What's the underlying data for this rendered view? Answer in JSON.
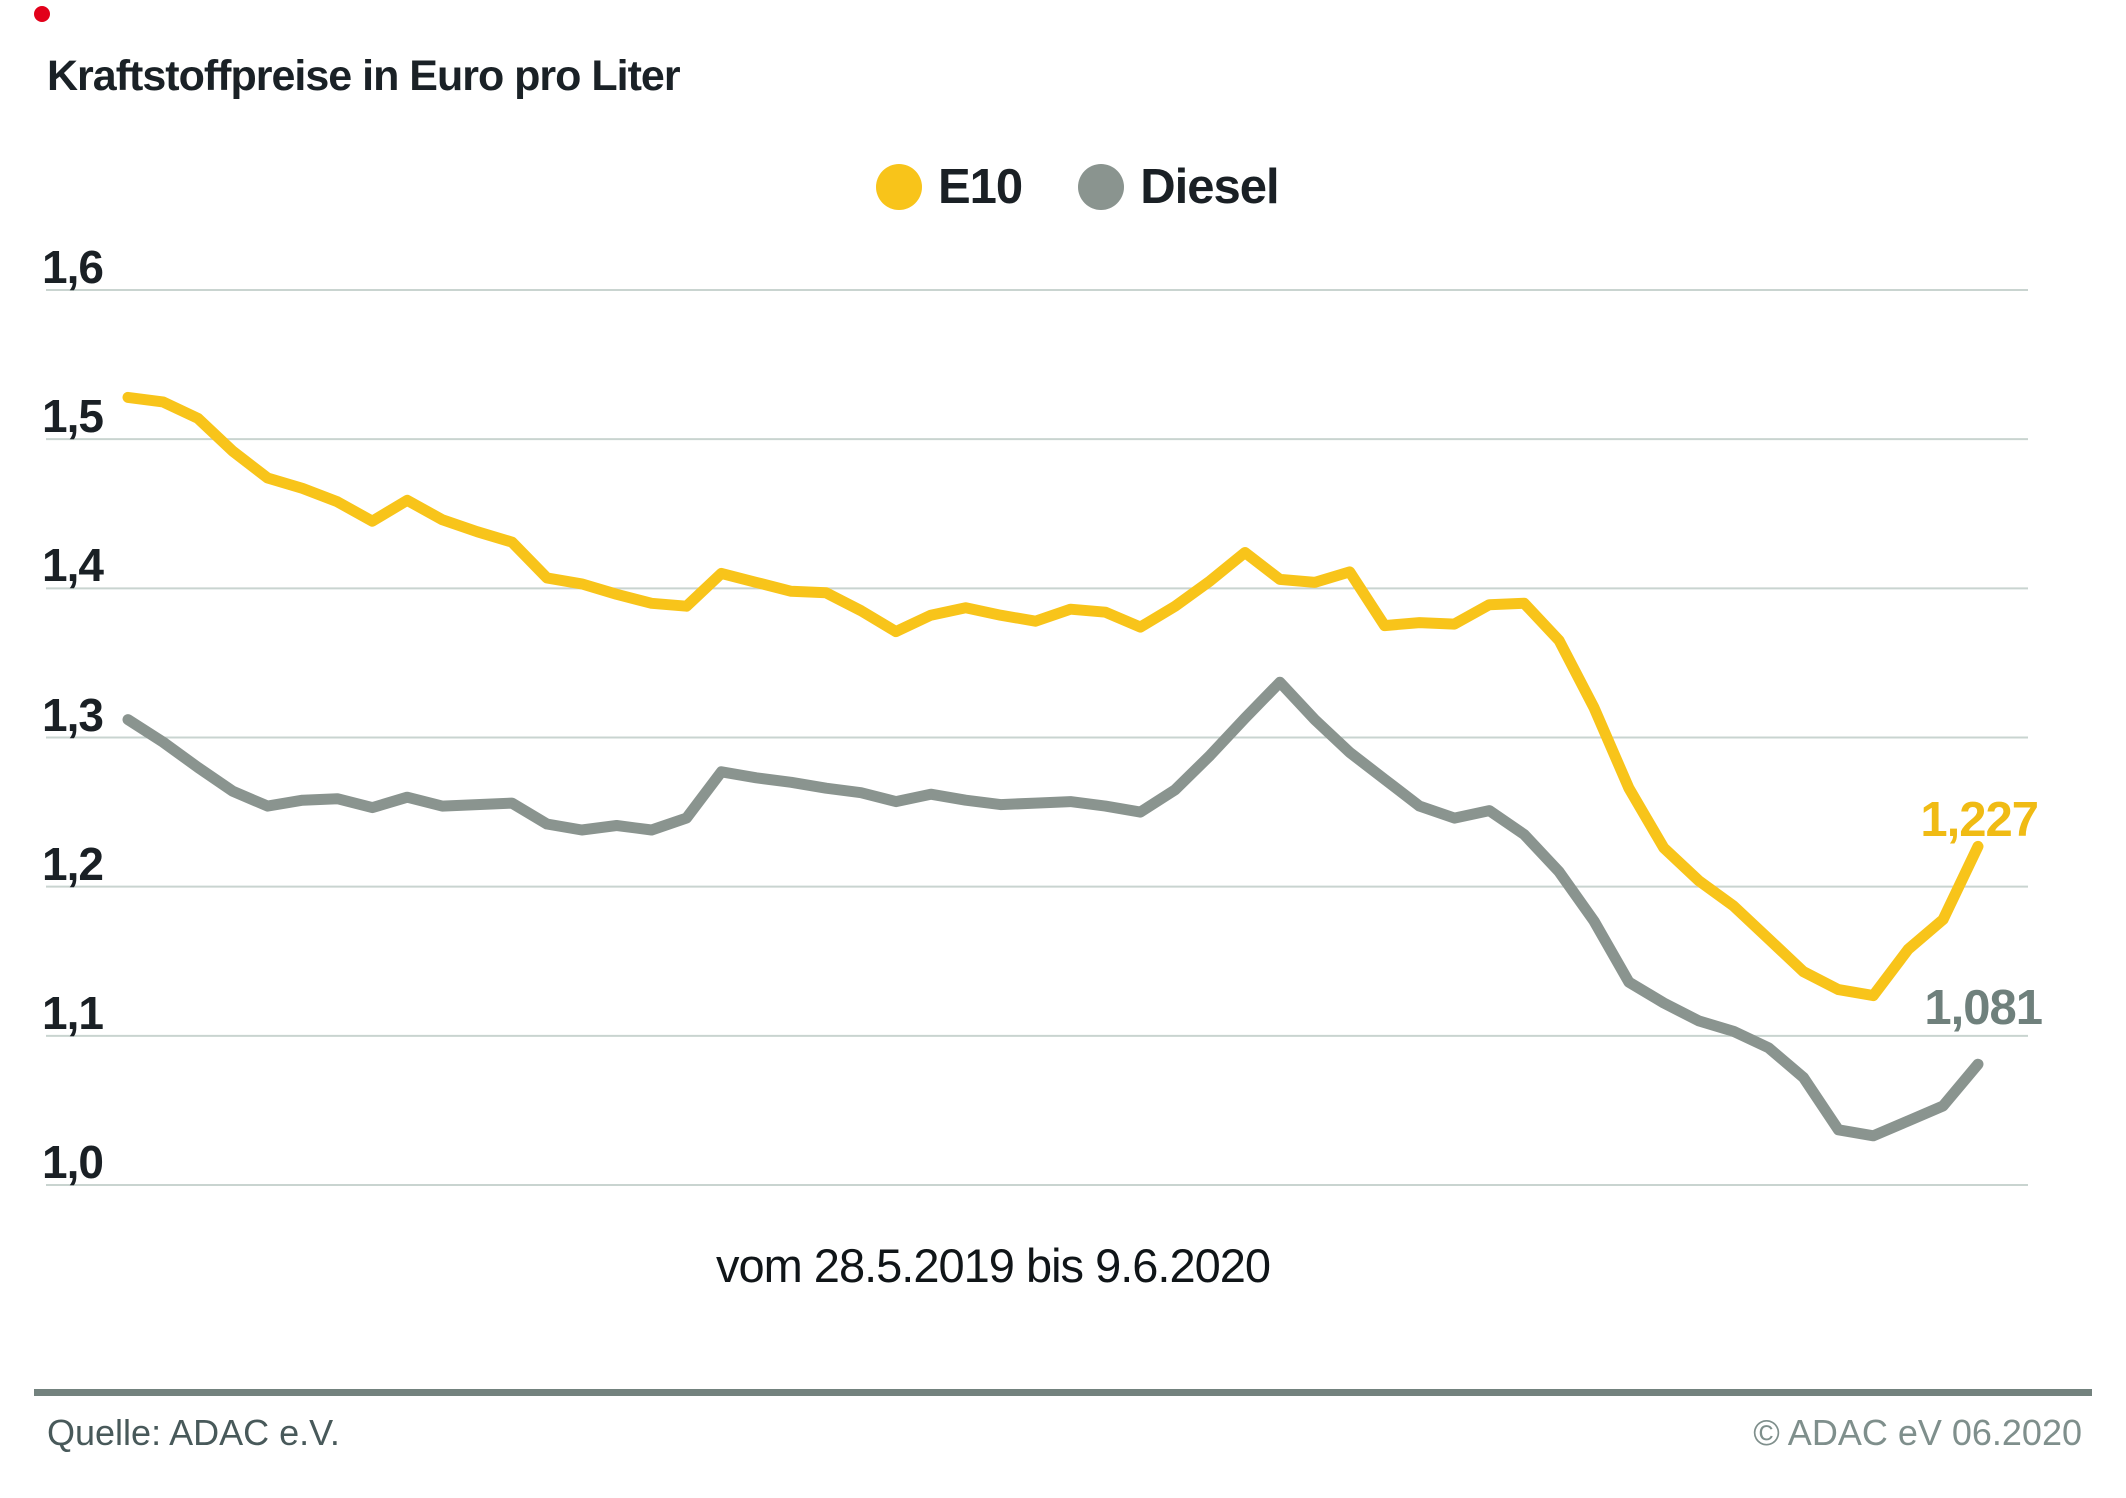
{
  "title": "Kraftstoffpreise in Euro pro Liter",
  "decoration": {
    "red_dot_color": "#e2001a"
  },
  "theme": {
    "background": "#ffffff",
    "grid_color": "#c9d4d0",
    "text_dark": "#1a2025",
    "footer_rule_color": "#73827e"
  },
  "legend": [
    {
      "label": "E10",
      "color": "#f8c41a"
    },
    {
      "label": "Diesel",
      "color": "#8a948f"
    }
  ],
  "chart_data": {
    "type": "line",
    "title": "Kraftstoffpreise in Euro pro Liter",
    "x_caption": "vom 28.5.2019 bis 9.6.2020",
    "x_range_start": "28.5.2019",
    "x_range_end": "9.6.2020",
    "ylim": [
      1.0,
      1.6
    ],
    "grid": true,
    "legend_position": "top",
    "yticks": [
      1.6,
      1.5,
      1.4,
      1.3,
      1.2,
      1.1,
      1.0
    ],
    "ytick_labels": [
      "1,6",
      "1,5",
      "1,4",
      "1,3",
      "1,2",
      "1,1",
      "1,0"
    ],
    "series": [
      {
        "name": "E10",
        "color": "#f8c41a",
        "end_label": "1,227",
        "end_label_color": "#f0bb14",
        "final_value": 1.227,
        "values": [
          1.528,
          1.525,
          1.514,
          1.492,
          1.474,
          1.467,
          1.458,
          1.445,
          1.459,
          1.446,
          1.438,
          1.431,
          1.407,
          1.403,
          1.396,
          1.39,
          1.388,
          1.41,
          1.404,
          1.398,
          1.397,
          1.385,
          1.371,
          1.382,
          1.387,
          1.382,
          1.378,
          1.386,
          1.384,
          1.374,
          1.388,
          1.405,
          1.424,
          1.406,
          1.404,
          1.411,
          1.375,
          1.377,
          1.376,
          1.389,
          1.39,
          1.365,
          1.32,
          1.266,
          1.226,
          1.204,
          1.187,
          1.165,
          1.143,
          1.131,
          1.127,
          1.158,
          1.178,
          1.227
        ]
      },
      {
        "name": "Diesel",
        "color": "#8a948f",
        "end_label": "1,081",
        "end_label_color": "#6f807c",
        "final_value": 1.081,
        "values": [
          1.312,
          1.297,
          1.28,
          1.264,
          1.254,
          1.258,
          1.259,
          1.253,
          1.26,
          1.254,
          1.255,
          1.256,
          1.242,
          1.238,
          1.241,
          1.238,
          1.246,
          1.277,
          1.273,
          1.27,
          1.266,
          1.263,
          1.257,
          1.262,
          1.258,
          1.255,
          1.256,
          1.257,
          1.254,
          1.25,
          1.265,
          1.288,
          1.313,
          1.337,
          1.312,
          1.29,
          1.272,
          1.254,
          1.246,
          1.251,
          1.235,
          1.21,
          1.177,
          1.136,
          1.122,
          1.11,
          1.103,
          1.092,
          1.072,
          1.037,
          1.033,
          1.043,
          1.053,
          1.081
        ]
      }
    ]
  },
  "footer": {
    "source": "Quelle: ADAC e.V.",
    "copyright": "© ADAC eV 06.2020"
  }
}
